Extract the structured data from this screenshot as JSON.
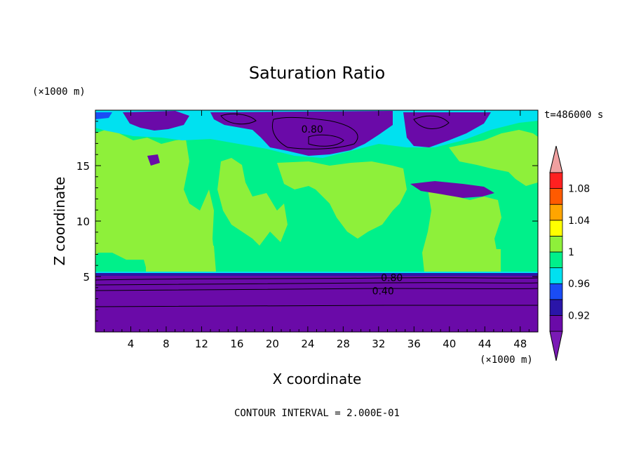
{
  "chart_data": {
    "type": "heatmap",
    "title": "Saturation Ratio",
    "xlabel": "X coordinate",
    "ylabel": "Z coordinate",
    "x_unit": "(×1000 m)",
    "y_unit": "(×1000 m)",
    "time_label": "t=486000 s",
    "footer": "CONTOUR INTERVAL = 2.000E-01",
    "xlim": [
      0,
      50
    ],
    "ylim": [
      0,
      20
    ],
    "x_ticks": [
      4,
      8,
      12,
      16,
      20,
      24,
      28,
      32,
      36,
      40,
      44,
      48
    ],
    "y_ticks": [
      5,
      10,
      15
    ],
    "contour_labels": [
      {
        "text": "0.80",
        "x": 24.5,
        "y": 18.3
      },
      {
        "text": "0.80",
        "x": 33.5,
        "y": 4.9
      },
      {
        "text": "0.40",
        "x": 32.5,
        "y": 3.7
      }
    ],
    "colorbar": {
      "levels": [
        0.9,
        0.92,
        0.94,
        0.96,
        0.98,
        1.0,
        1.02,
        1.04,
        1.06,
        1.08,
        1.1
      ],
      "labels": [
        "0.92",
        "0.96",
        "1",
        "1.04",
        "1.08"
      ],
      "colors": [
        "#6a0aa8",
        "#2a15a8",
        "#1a4cf5",
        "#00e1f0",
        "#00f08a",
        "#8ef03a",
        "#ffff00",
        "#ffa500",
        "#ff5a00",
        "#ff2020"
      ],
      "under_color": "#7a1ab5",
      "over_color": "#f0a0a0"
    },
    "regions": [
      {
        "level": "0.90-0.92",
        "description": "lower layer z < 5.2"
      },
      {
        "level": "1.00-1.02",
        "description": "yellow-green patches x 5-14, x 37-46"
      },
      {
        "level": "0.98-1.00",
        "description": "green background"
      },
      {
        "level": "<0.90",
        "description": "dry patches near top z 17-20"
      }
    ]
  }
}
